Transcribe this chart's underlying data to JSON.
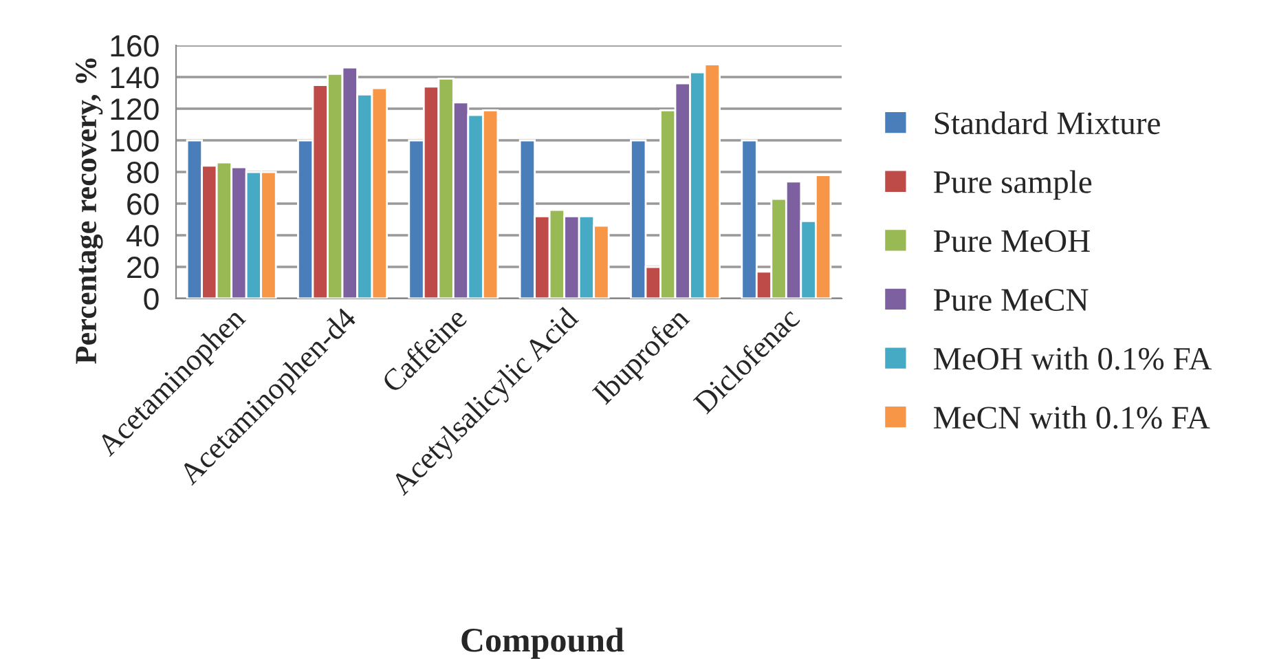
{
  "chart_data": {
    "type": "bar",
    "xlabel": "Compound",
    "ylabel": "Percentage recovery, %",
    "categories": [
      "Acetaminophen",
      "Acetaminophen-d4",
      "Caffeine",
      "Acetylsalicylic Acid",
      "Ibuprofen",
      "Diclofenac"
    ],
    "series": [
      {
        "name": "Standard Mixture",
        "color": "#4a7ebb",
        "values": [
          100,
          100,
          100,
          100,
          100,
          100
        ]
      },
      {
        "name": "Pure sample",
        "color": "#be4b48",
        "values": [
          84,
          135,
          134,
          52,
          20,
          17
        ]
      },
      {
        "name": "Pure MeOH",
        "color": "#98b954",
        "values": [
          86,
          142,
          139,
          56,
          119,
          63
        ]
      },
      {
        "name": "Pure MeCN",
        "color": "#7d60a0",
        "values": [
          83,
          146,
          124,
          52,
          136,
          74
        ]
      },
      {
        "name": "MeOH with 0.1% FA",
        "color": "#46aac5",
        "values": [
          80,
          129,
          116,
          52,
          143,
          49
        ]
      },
      {
        "name": "MeCN with 0.1% FA",
        "color": "#f79646",
        "values": [
          80,
          133,
          119,
          46,
          148,
          78
        ]
      }
    ],
    "ylim": [
      0,
      160
    ],
    "yticks": [
      0,
      20,
      40,
      60,
      80,
      100,
      120,
      140,
      160
    ],
    "grid": "y",
    "legend": "right"
  }
}
